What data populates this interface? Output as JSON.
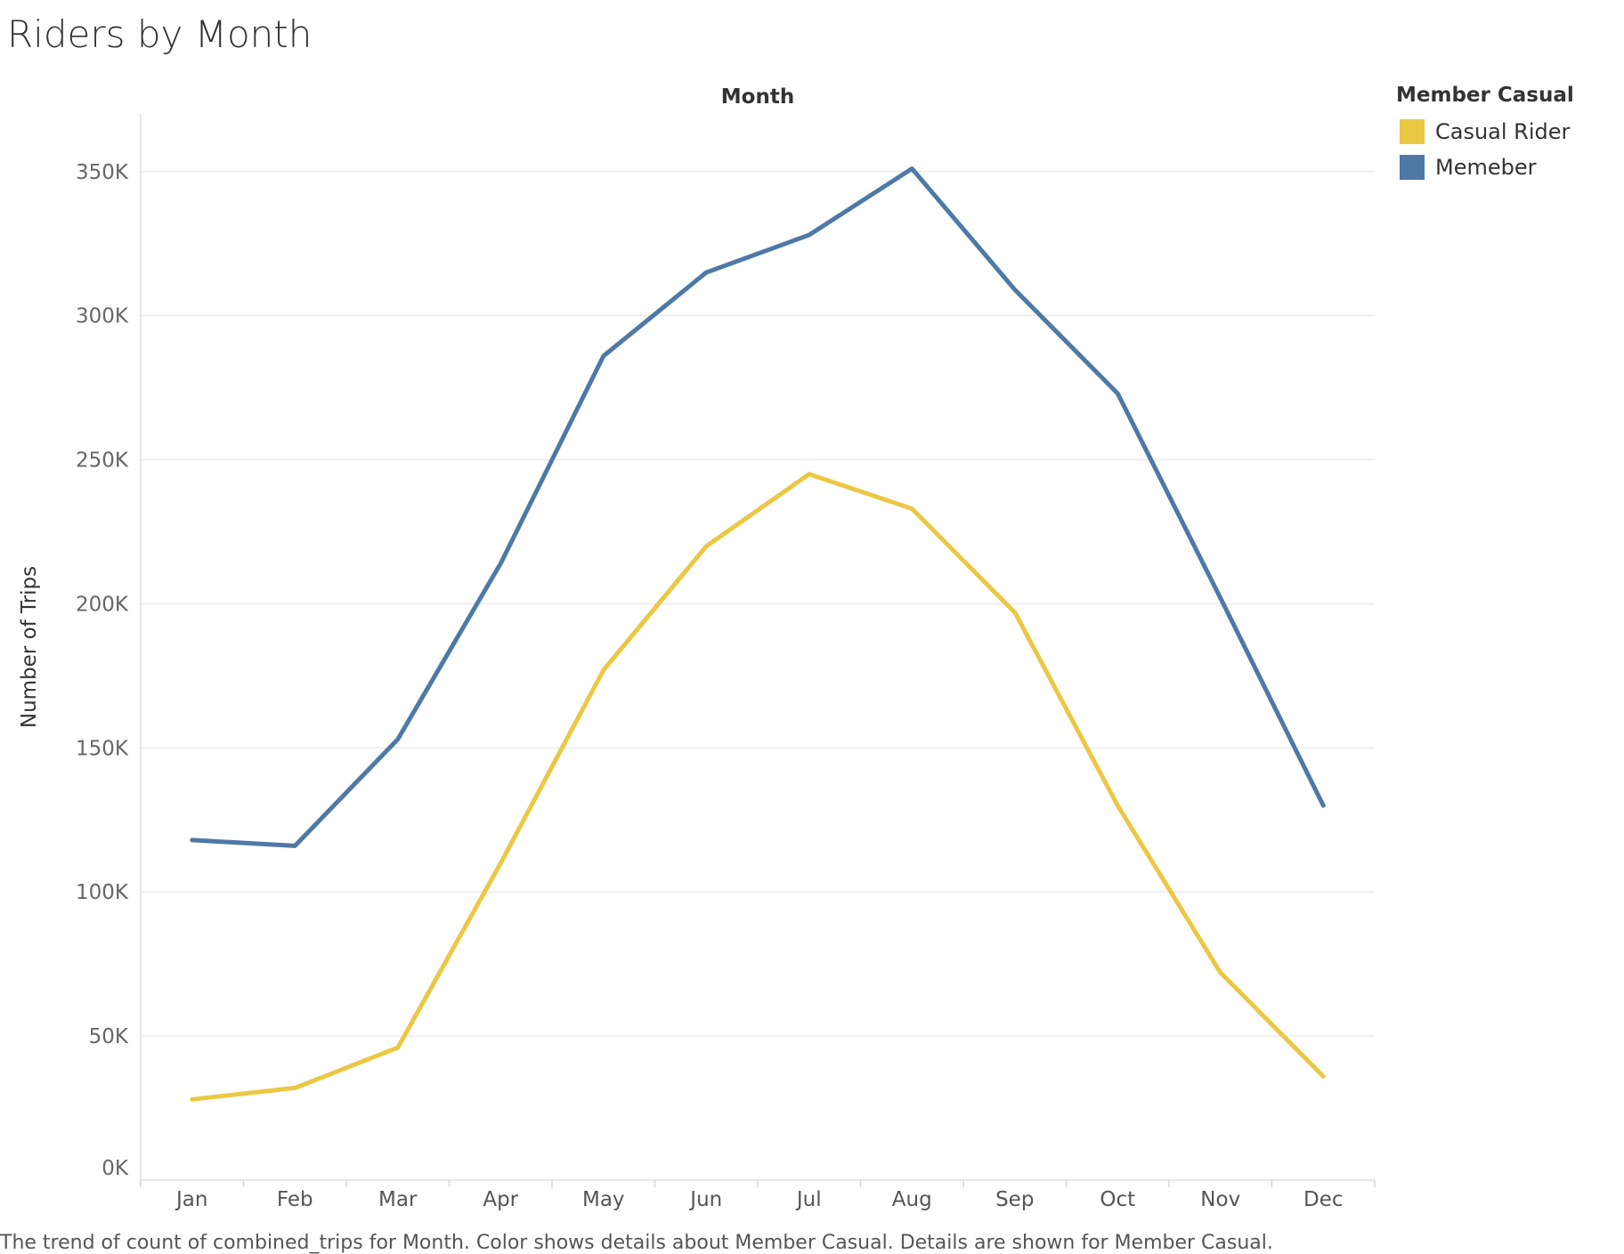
{
  "title": "Riders by Month",
  "caption": "The trend of count of combined_trips for Month.  Color shows details about Member Casual.  Details are shown for Member Casual.",
  "chart_data": {
    "type": "line",
    "title": "Riders by Month",
    "column_header": "Month",
    "xlabel": "",
    "ylabel": "Number of Trips",
    "categories": [
      "Jan",
      "Feb",
      "Mar",
      "Apr",
      "May",
      "Jun",
      "Jul",
      "Aug",
      "Sep",
      "Oct",
      "Nov",
      "Dec"
    ],
    "y_ticks": [
      0,
      50000,
      100000,
      150000,
      200000,
      250000,
      300000,
      350000
    ],
    "y_tick_labels": [
      "0K",
      "50K",
      "100K",
      "150K",
      "200K",
      "250K",
      "300K",
      "350K"
    ],
    "ylim": [
      0,
      370000
    ],
    "grid": true,
    "legend": {
      "title": "Member Casual",
      "placement": "top-right"
    },
    "series": [
      {
        "name": "Casual Rider",
        "color": "#EBC844",
        "values": [
          28000,
          32000,
          46000,
          110000,
          177000,
          220000,
          245000,
          233000,
          197000,
          130000,
          72000,
          36000
        ]
      },
      {
        "name": "Memeber",
        "color": "#4E79A7",
        "values": [
          118000,
          116000,
          153000,
          214000,
          286000,
          315000,
          328000,
          351000,
          309000,
          273000,
          202000,
          130000
        ]
      }
    ]
  }
}
